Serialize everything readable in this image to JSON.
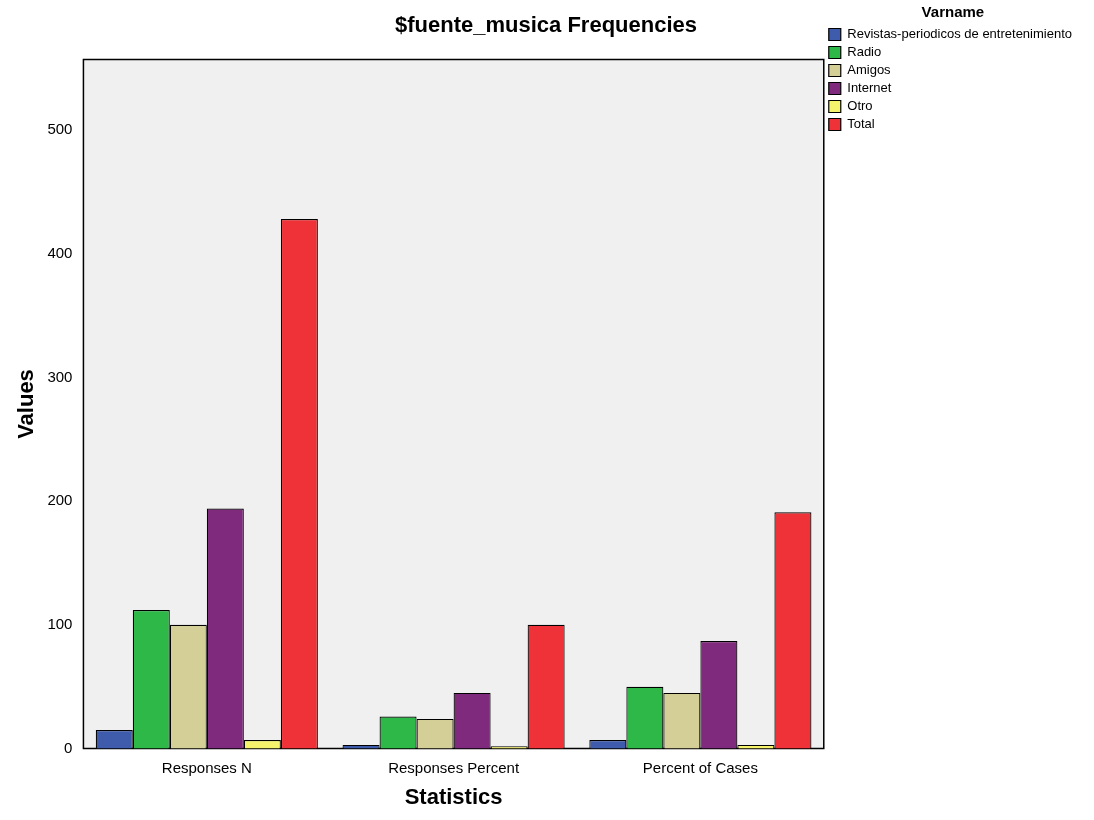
{
  "chart_data": {
    "type": "bar",
    "title": "$fuente_musica Frequencies",
    "xlabel": "Statistics",
    "ylabel": "Values",
    "legend_title": "Varname",
    "categories": [
      "Responses N",
      "Responses Percent",
      "Percent of Cases"
    ],
    "series": [
      {
        "name": "Revistas-periodicos de entretenimiento",
        "color": "#3f5bab",
        "values": [
          15,
          3,
          7
        ]
      },
      {
        "name": "Radio",
        "color": "#2eb848",
        "values": [
          112,
          26,
          50
        ]
      },
      {
        "name": "Amigos",
        "color": "#d4cf96",
        "values": [
          100,
          24,
          45
        ]
      },
      {
        "name": "Internet",
        "color": "#7f2a7d",
        "values": [
          194,
          45,
          87
        ]
      },
      {
        "name": "Otro",
        "color": "#f5f36b",
        "values": [
          7,
          2,
          3
        ]
      },
      {
        "name": "Total",
        "color": "#ee3237",
        "values": [
          428,
          100,
          191
        ]
      }
    ],
    "ylim": [
      0,
      557
    ],
    "yticks": [
      0,
      100,
      200,
      300,
      400,
      500
    ],
    "grid": false,
    "legend": "top right"
  }
}
